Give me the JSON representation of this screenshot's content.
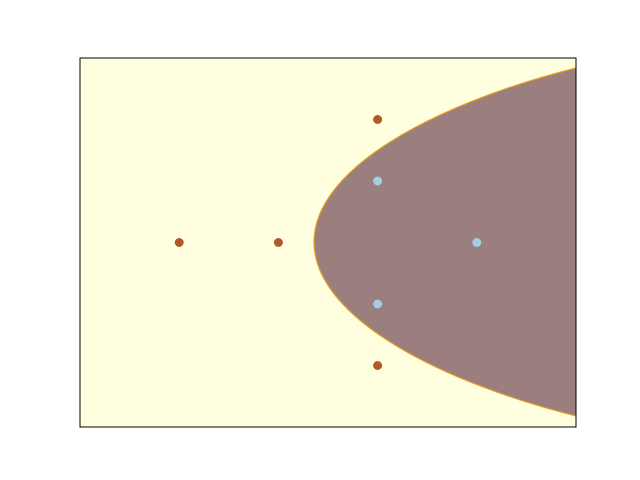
{
  "chart_data": {
    "type": "scatter",
    "xlim": [
      -3,
      2
    ],
    "ylim": [
      -3,
      3
    ],
    "background": "#ffffe0",
    "region_color": "#9b7e7e",
    "boundary_color": "#e8a020",
    "series": [
      {
        "color": "#b15928",
        "x": [
          -2,
          -1,
          0,
          0
        ],
        "values": [
          0,
          0,
          2,
          -2
        ]
      },
      {
        "color": "#a6cee3",
        "x": [
          0,
          0,
          1
        ],
        "values": [
          1,
          -1,
          0
        ]
      }
    ]
  }
}
